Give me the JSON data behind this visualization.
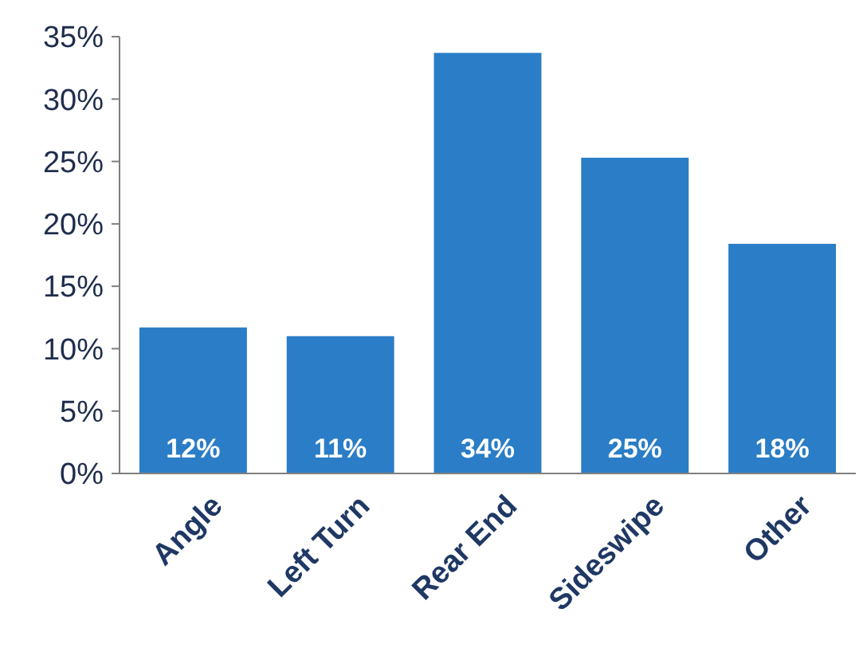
{
  "chart_data": {
    "type": "bar",
    "categories": [
      "Angle",
      "Left Turn",
      "Rear End",
      "Sideswipe",
      "Other"
    ],
    "values": [
      11.7,
      11.0,
      33.7,
      25.3,
      18.4
    ],
    "value_labels": [
      "12%",
      "11%",
      "34%",
      "25%",
      "18%"
    ],
    "color": "#2a7dc6",
    "ylim": [
      0,
      35
    ],
    "yticks": [
      {
        "value": 0,
        "label": "0%"
      },
      {
        "value": 5,
        "label": "5%"
      },
      {
        "value": 10,
        "label": "10%"
      },
      {
        "value": 15,
        "label": "15%"
      },
      {
        "value": 20,
        "label": "20%"
      },
      {
        "value": 25,
        "label": "25%"
      },
      {
        "value": 30,
        "label": "30%"
      },
      {
        "value": 35,
        "label": "35%"
      }
    ],
    "grid": false
  }
}
